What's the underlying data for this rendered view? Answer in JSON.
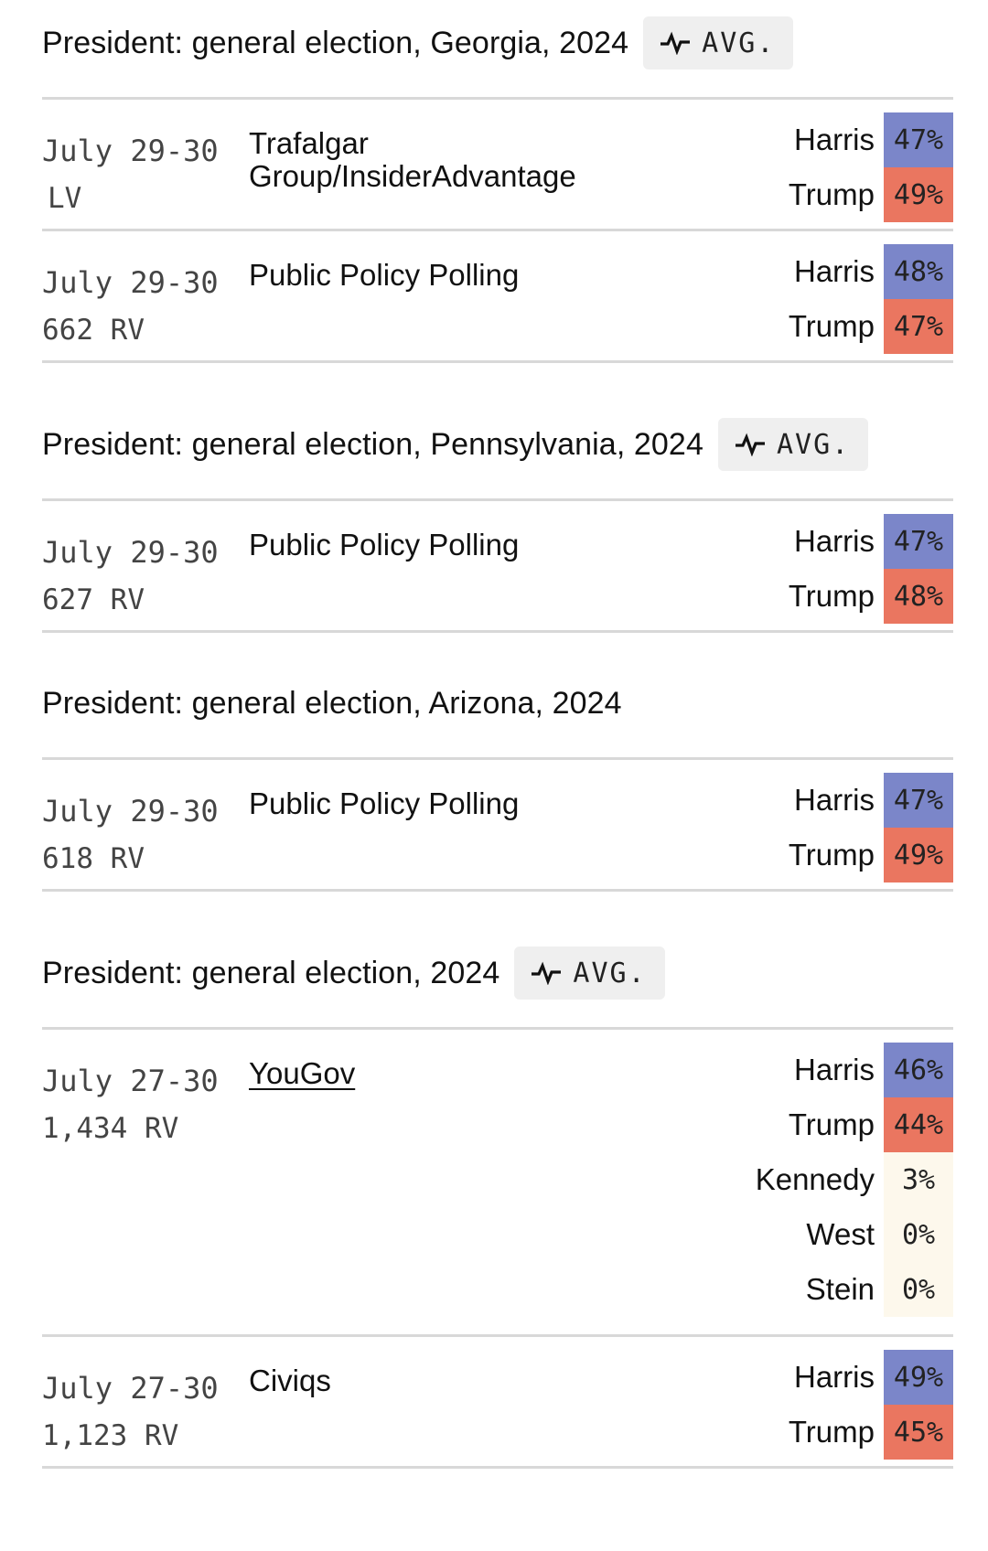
{
  "colors": {
    "dem": "#7b86c9",
    "rep": "#ea7660",
    "other": "#fdf8ec",
    "rule": "#d8d8d8",
    "avg_bg": "#efefef"
  },
  "sections": [
    {
      "title": "President: general election, Georgia, 2024",
      "avg_label": "AVG.",
      "polls": [
        {
          "dates": "July 29-30",
          "sample": "LV",
          "pollster": "Trafalgar Group/InsiderAdvantage",
          "results": [
            {
              "name": "Harris",
              "pct": "47%"
            },
            {
              "name": "Trump",
              "pct": "49%"
            }
          ]
        },
        {
          "dates": "July 29-30",
          "sample": "662 RV",
          "pollster": "Public Policy Polling",
          "results": [
            {
              "name": "Harris",
              "pct": "48%"
            },
            {
              "name": "Trump",
              "pct": "47%"
            }
          ]
        }
      ]
    },
    {
      "title": "President: general election, Pennsylvania, 2024",
      "avg_label": "AVG.",
      "polls": [
        {
          "dates": "July 29-30",
          "sample": "627 RV",
          "pollster": "Public Policy Polling",
          "results": [
            {
              "name": "Harris",
              "pct": "47%"
            },
            {
              "name": "Trump",
              "pct": "48%"
            }
          ]
        }
      ]
    },
    {
      "title": "President: general election, Arizona, 2024",
      "polls": [
        {
          "dates": "July 29-30",
          "sample": "618 RV",
          "pollster": "Public Policy Polling",
          "results": [
            {
              "name": "Harris",
              "pct": "47%"
            },
            {
              "name": "Trump",
              "pct": "49%"
            }
          ]
        }
      ]
    },
    {
      "title": "President: general election, 2024",
      "avg_label": "AVG.",
      "polls": [
        {
          "dates": "July 27-30",
          "sample": "1,434 RV",
          "pollster": "YouGov",
          "results": [
            {
              "name": "Harris",
              "pct": "46%"
            },
            {
              "name": "Trump",
              "pct": "44%"
            },
            {
              "name": "Kennedy",
              "pct": "3%"
            },
            {
              "name": "West",
              "pct": "0%"
            },
            {
              "name": "Stein",
              "pct": "0%"
            }
          ]
        },
        {
          "dates": "July 27-30",
          "sample": "1,123 RV",
          "pollster": "Civiqs",
          "results": [
            {
              "name": "Harris",
              "pct": "49%"
            },
            {
              "name": "Trump",
              "pct": "45%"
            }
          ]
        }
      ]
    }
  ]
}
